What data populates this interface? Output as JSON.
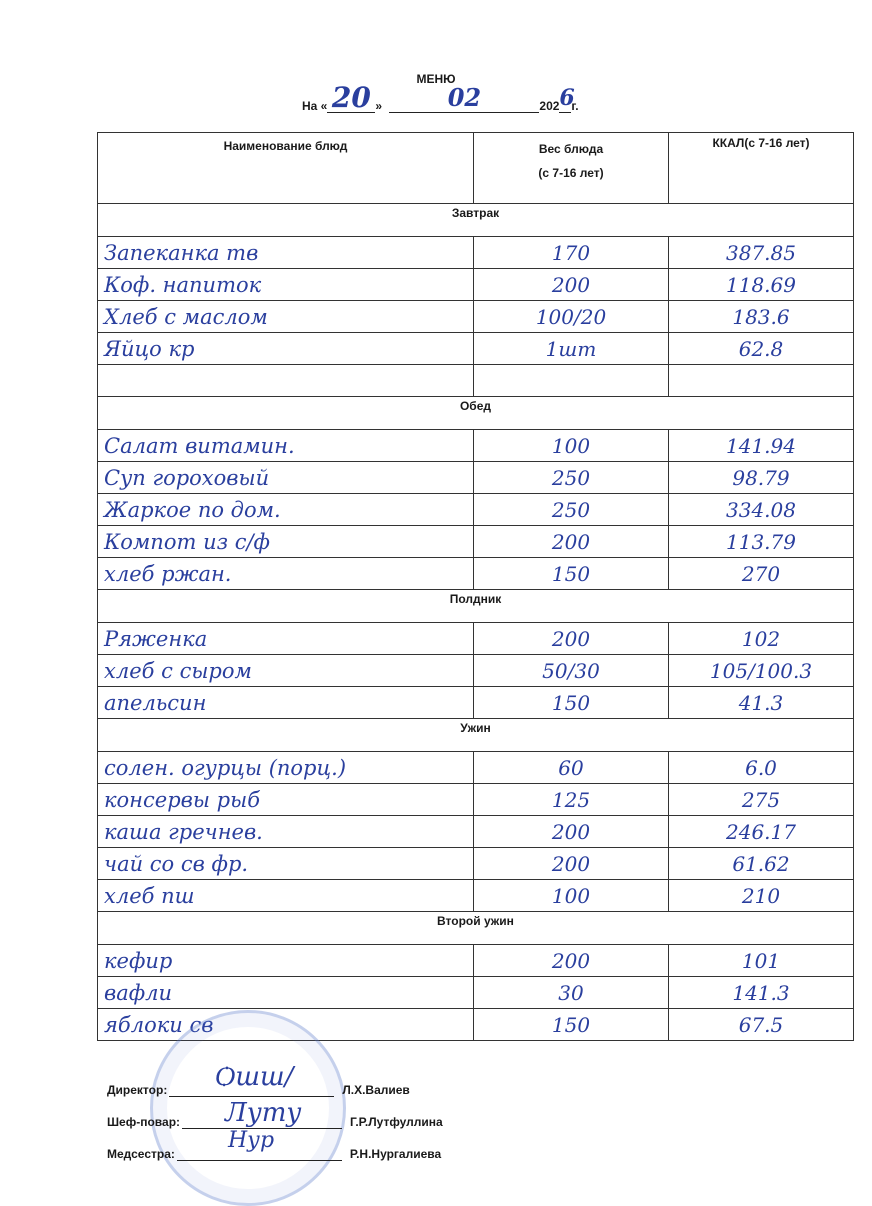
{
  "header": {
    "title": "МЕНЮ",
    "date_prefix": "На «",
    "date_mid": "»",
    "day": "20",
    "month": "02",
    "year_prefix": "202",
    "year_digit": "6",
    "year_suffix": "г."
  },
  "table": {
    "columns": [
      "Наименование блюд",
      "Вес блюда",
      "(с 7-16 лет)",
      "ККАЛ(с 7-16 лет)"
    ],
    "sections": [
      {
        "title": "Завтрак",
        "rows": [
          {
            "name": "Запеканка тв",
            "weight": "170",
            "kcal": "387.85"
          },
          {
            "name": "Коф. напиток",
            "weight": "200",
            "kcal": "118.69"
          },
          {
            "name": "Хлеб с маслом",
            "weight": "100/20",
            "kcal": "183.6"
          },
          {
            "name": "Яйцо кр",
            "weight": "1шт",
            "kcal": "62.8"
          },
          {
            "name": "",
            "weight": "",
            "kcal": ""
          }
        ]
      },
      {
        "title": "Обед",
        "rows": [
          {
            "name": "Салат витамин.",
            "weight": "100",
            "kcal": "141.94"
          },
          {
            "name": "Суп гороховый",
            "weight": "250",
            "kcal": "98.79"
          },
          {
            "name": "Жаркое по дом.",
            "weight": "250",
            "kcal": "334.08"
          },
          {
            "name": "Компот из с/ф",
            "weight": "200",
            "kcal": "113.79"
          },
          {
            "name": "хлеб ржан.",
            "weight": "150",
            "kcal": "270"
          }
        ]
      },
      {
        "title": "Полдник",
        "rows": [
          {
            "name": "Ряженка",
            "weight": "200",
            "kcal": "102"
          },
          {
            "name": "хлеб с сыром",
            "weight": "50/30",
            "kcal": "105/100.3"
          },
          {
            "name": "апельсин",
            "weight": "150",
            "kcal": "41.3"
          }
        ]
      },
      {
        "title": "Ужин",
        "rows": [
          {
            "name": "солен. огурцы (порц.)",
            "weight": "60",
            "kcal": "6.0"
          },
          {
            "name": "консервы рыб",
            "weight": "125",
            "kcal": "275"
          },
          {
            "name": "каша гречнев.",
            "weight": "200",
            "kcal": "246.17"
          },
          {
            "name": "чай со св фр.",
            "weight": "200",
            "kcal": "61.62"
          },
          {
            "name": "хлеб пш",
            "weight": "100",
            "kcal": "210"
          }
        ]
      },
      {
        "title": "Второй ужин",
        "rows": [
          {
            "name": "кефир",
            "weight": "200",
            "kcal": "101"
          },
          {
            "name": "вафли",
            "weight": "30",
            "kcal": "141.3"
          },
          {
            "name": "яблоки св",
            "weight": "150",
            "kcal": "67.5"
          }
        ]
      }
    ]
  },
  "signatures": [
    {
      "role": "Директор:",
      "name": "Л.Х.Валиев"
    },
    {
      "role": "Шеф-повар:",
      "name": "Г.Р.Лутфуллина"
    },
    {
      "role": "Медсестра:",
      "name": "Р.Н.Нургалиева"
    }
  ],
  "colors": {
    "ink": "#2a3f9e",
    "stamp": "#5a78c8"
  }
}
